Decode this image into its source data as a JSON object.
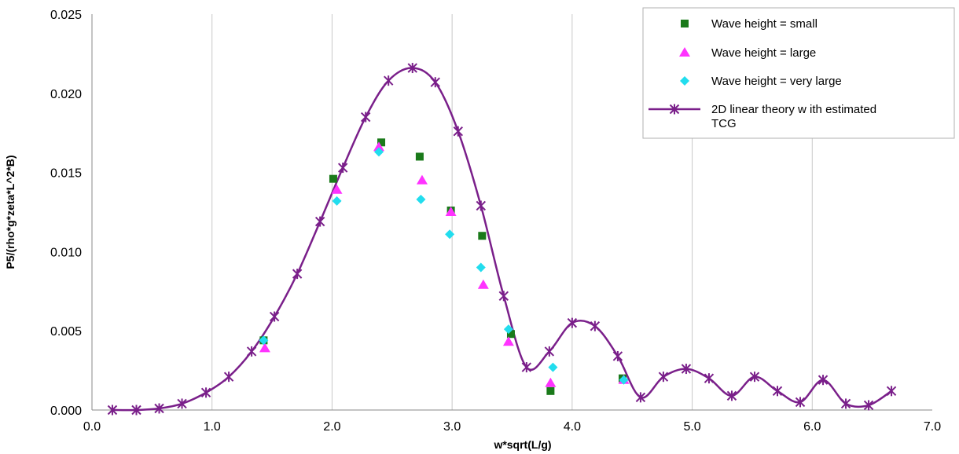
{
  "chart_data": {
    "type": "scatter",
    "title": "",
    "xlabel": "w*sqrt(L/g)",
    "ylabel": "P5/(rho*g*zeta*L^2*B)",
    "xlim": [
      0.0,
      7.0
    ],
    "ylim": [
      0.0,
      0.025
    ],
    "x_ticks": [
      "0.0",
      "1.0",
      "2.0",
      "3.0",
      "4.0",
      "5.0",
      "6.0",
      "7.0"
    ],
    "y_ticks": [
      "0.000",
      "0.005",
      "0.010",
      "0.015",
      "0.020",
      "0.025"
    ],
    "grid": "vertical",
    "legend_position": "top-right",
    "series": [
      {
        "name": "Wave height = small",
        "marker": "square",
        "color": "#1a7a1a",
        "x": [
          1.43,
          2.01,
          2.41,
          2.73,
          2.99,
          3.25,
          3.49,
          3.82,
          4.42
        ],
        "y": [
          0.0044,
          0.0146,
          0.0169,
          0.016,
          0.0126,
          0.011,
          0.0048,
          0.0012,
          0.002
        ]
      },
      {
        "name": "Wave height = large",
        "marker": "triangle",
        "color": "#ff33ff",
        "x": [
          1.44,
          2.04,
          2.39,
          2.75,
          2.99,
          3.26,
          3.47,
          3.82,
          4.43
        ],
        "y": [
          0.0039,
          0.0139,
          0.0166,
          0.0145,
          0.0125,
          0.0079,
          0.0043,
          0.0017,
          0.0019
        ]
      },
      {
        "name": "Wave height = very large",
        "marker": "diamond",
        "color": "#22ddee",
        "x": [
          1.43,
          2.04,
          2.39,
          2.74,
          2.98,
          3.24,
          3.47,
          3.84,
          4.43
        ],
        "y": [
          0.0044,
          0.0132,
          0.0163,
          0.0133,
          0.0111,
          0.009,
          0.0051,
          0.0027,
          0.0019
        ]
      },
      {
        "name": "2D linear theory w ith estimated TCG",
        "marker": "star-line",
        "color": "#7a1f8a",
        "x": [
          0.17,
          0.37,
          0.56,
          0.75,
          0.95,
          1.14,
          1.33,
          1.52,
          1.71,
          1.9,
          2.09,
          2.28,
          2.47,
          2.67,
          2.86,
          3.05,
          3.24,
          3.43,
          3.62,
          3.81,
          4.0,
          4.19,
          4.38,
          4.57,
          4.76,
          4.95,
          5.14,
          5.33,
          5.52,
          5.71,
          5.9,
          6.09,
          6.28,
          6.47,
          6.66
        ],
        "y": [
          0.0,
          0.0,
          0.0001,
          0.0004,
          0.0011,
          0.0021,
          0.0037,
          0.0059,
          0.0086,
          0.0119,
          0.0153,
          0.0185,
          0.0208,
          0.0216,
          0.0207,
          0.0176,
          0.0129,
          0.0072,
          0.0027,
          0.0037,
          0.0055,
          0.0053,
          0.0034,
          0.0008,
          0.0021,
          0.0026,
          0.002,
          0.0009,
          0.0021,
          0.0012,
          0.0005,
          0.0019,
          0.0004,
          0.0003,
          0.0012
        ]
      }
    ]
  }
}
